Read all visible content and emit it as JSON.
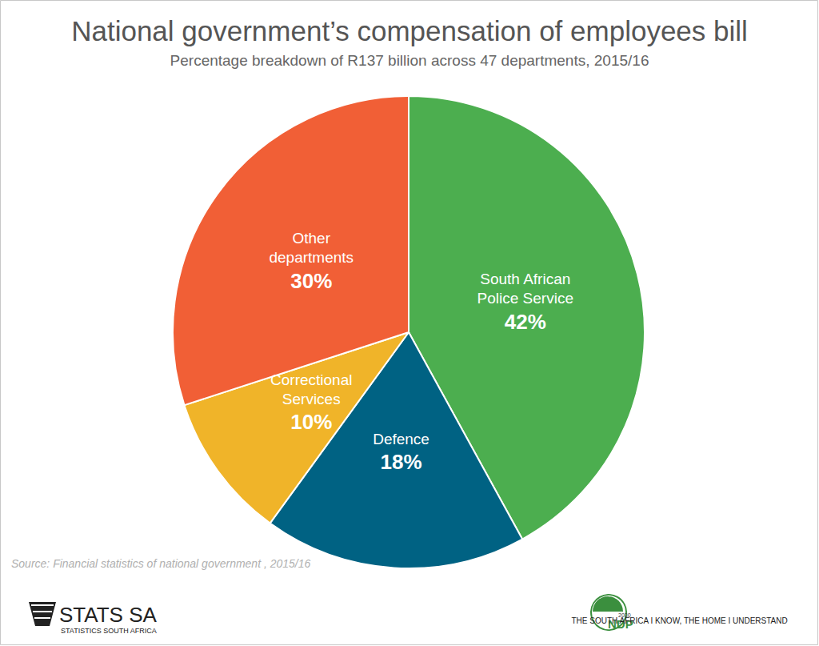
{
  "chart_data": {
    "type": "pie",
    "title": "National government’s compensation of employees bill",
    "subtitle": "Percentage breakdown of R137 billion across 47 departments, 2015/16",
    "categories": [
      "South African Police Service",
      "Defence",
      "Correctional Services",
      "Other departments"
    ],
    "values": [
      42,
      18,
      10,
      30
    ],
    "value_labels": [
      "42%",
      "18%",
      "10%",
      "30%"
    ],
    "colors": [
      "#4cae4f",
      "#006283",
      "#f0b429",
      "#f15f36"
    ],
    "data_labels": true,
    "annotations": {
      "source": "Source: Financial statistics of national government , 2015/16",
      "logo": "STATS SA",
      "logo_subtitle": "STATISTICS SOUTH AFRICA",
      "ndp": "NDP",
      "ndp_year": "2030",
      "slogan": "THE SOUTH AFRICA I KNOW, THE HOME I UNDERSTAND"
    }
  }
}
